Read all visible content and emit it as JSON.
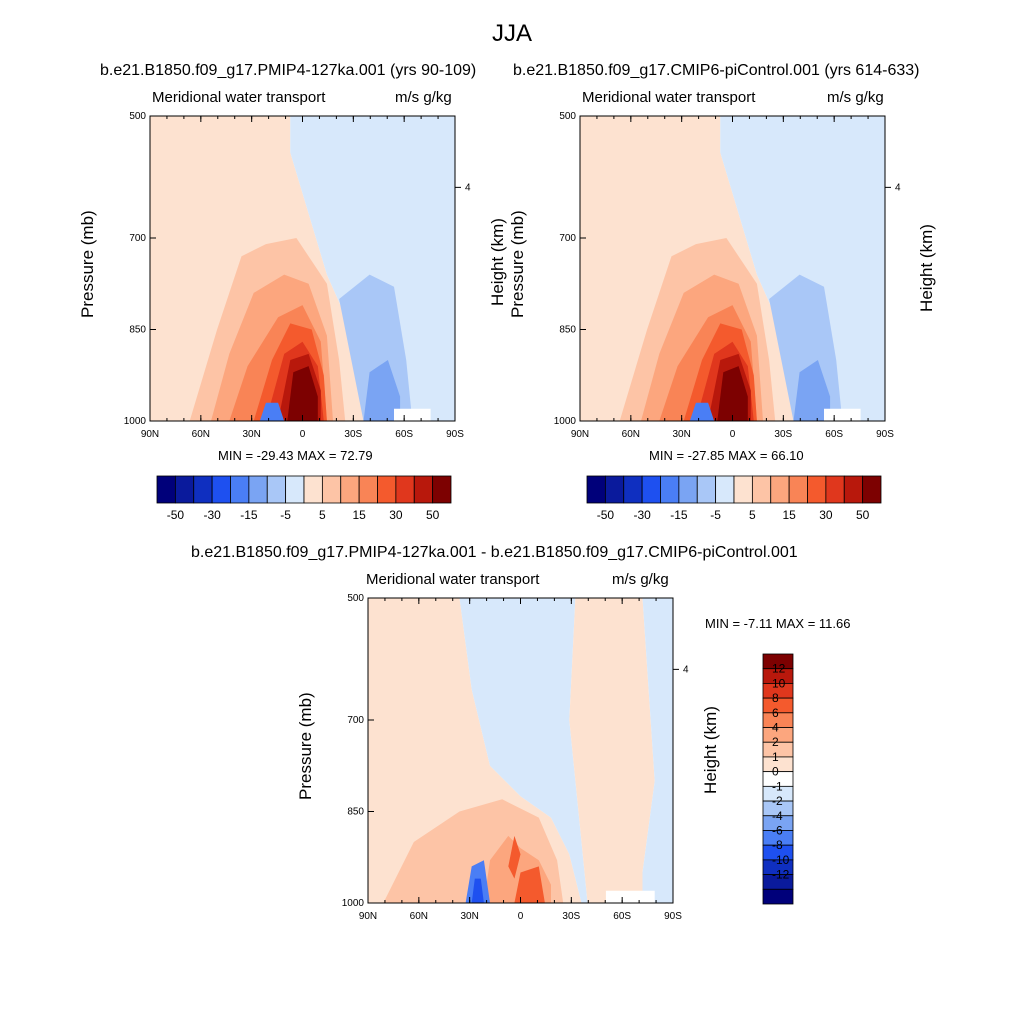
{
  "figure": {
    "title": "JJA"
  },
  "chart_data": [
    {
      "type": "heatmap",
      "title": "b.e21.B1850.f09_g17.PMIP4-127ka.001 (yrs 90-109)",
      "left_header": "Meridional water transport",
      "right_header": "m/s g/kg",
      "ylabel": "Pressure (mb)",
      "ylabel_right": "Height (km)",
      "x_ticks": [
        "90N",
        "60N",
        "30N",
        "0",
        "30S",
        "60S",
        "90S"
      ],
      "y_ticks": [
        "500",
        "700",
        "850",
        "1000"
      ],
      "y_ticks_right": [
        "4"
      ],
      "ylim": [
        1000,
        500
      ],
      "xlim": [
        "90N",
        "90S"
      ],
      "stats_text": "MIN = -29.43  MAX =  72.79",
      "min": -29.43,
      "max": 72.79,
      "colorbar": {
        "orientation": "horizontal",
        "labels": [
          "-50",
          "-30",
          "-15",
          "-5",
          "5",
          "15",
          "30",
          "50"
        ],
        "colors": [
          "#00007a",
          "#0a1a9c",
          "#0f2fc0",
          "#1e50f0",
          "#4a7ef5",
          "#7aa4f3",
          "#a9c7f7",
          "#d7e8fb",
          "#fde2d0",
          "#fdc4a6",
          "#fca67e",
          "#f98456",
          "#f45a2d",
          "#e0371d",
          "#b8180c",
          "#7d0101"
        ]
      }
    },
    {
      "type": "heatmap",
      "title": "b.e21.B1850.f09_g17.CMIP6-piControl.001 (yrs 614-633)",
      "left_header": "Meridional water transport",
      "right_header": "m/s g/kg",
      "ylabel": "Pressure (mb)",
      "ylabel_right": "Height (km)",
      "x_ticks": [
        "90N",
        "60N",
        "30N",
        "0",
        "30S",
        "60S",
        "90S"
      ],
      "y_ticks": [
        "500",
        "700",
        "850",
        "1000"
      ],
      "y_ticks_right": [
        "4"
      ],
      "ylim": [
        1000,
        500
      ],
      "xlim": [
        "90N",
        "90S"
      ],
      "stats_text": "MIN = -27.85  MAX =  66.10",
      "min": -27.85,
      "max": 66.1,
      "colorbar": {
        "orientation": "horizontal",
        "labels": [
          "-50",
          "-30",
          "-15",
          "-5",
          "5",
          "15",
          "30",
          "50"
        ],
        "colors": [
          "#00007a",
          "#0a1a9c",
          "#0f2fc0",
          "#1e50f0",
          "#4a7ef5",
          "#7aa4f3",
          "#a9c7f7",
          "#d7e8fb",
          "#fde2d0",
          "#fdc4a6",
          "#fca67e",
          "#f98456",
          "#f45a2d",
          "#e0371d",
          "#b8180c",
          "#7d0101"
        ]
      }
    },
    {
      "type": "heatmap",
      "title": "b.e21.B1850.f09_g17.PMIP4-127ka.001 - b.e21.B1850.f09_g17.CMIP6-piControl.001",
      "left_header": "Meridional water transport",
      "right_header": "m/s g/kg",
      "ylabel": "Pressure (mb)",
      "ylabel_right": "Height (km)",
      "x_ticks": [
        "90N",
        "60N",
        "30N",
        "0",
        "30S",
        "60S",
        "90S"
      ],
      "y_ticks": [
        "500",
        "700",
        "850",
        "1000"
      ],
      "y_ticks_right": [
        "4"
      ],
      "ylim": [
        1000,
        500
      ],
      "xlim": [
        "90N",
        "90S"
      ],
      "stats_text": "MIN =  -7.11  MAX =  11.66",
      "min": -7.11,
      "max": 11.66,
      "colorbar": {
        "orientation": "vertical",
        "labels": [
          "12",
          "10",
          "8",
          "6",
          "4",
          "2",
          "1",
          "0",
          "-1",
          "-2",
          "-4",
          "-6",
          "-8",
          "-10",
          "-12"
        ],
        "colors": [
          "#7d0101",
          "#b8180c",
          "#e0371d",
          "#f45a2d",
          "#f98456",
          "#fca67e",
          "#fdc4a6",
          "#fde2d0",
          "#ffffff",
          "#d7e8fb",
          "#a9c7f7",
          "#7aa4f3",
          "#4a7ef5",
          "#1e50f0",
          "#0f2fc0",
          "#0a1a9c",
          "#00007a"
        ]
      }
    }
  ]
}
